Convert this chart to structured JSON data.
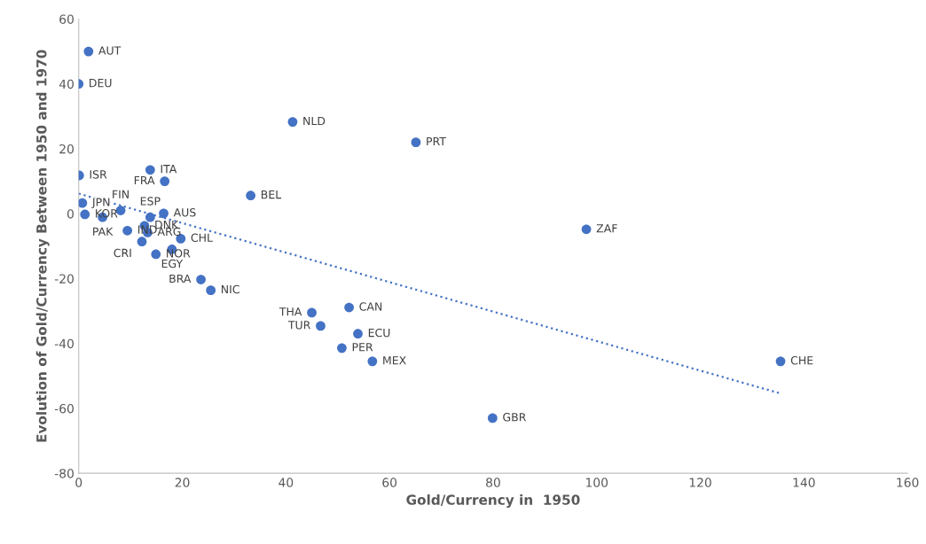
{
  "chart_data": {
    "type": "scatter",
    "xlabel": "Gold/Currency in  1950",
    "ylabel": "Evolution of Gold/Currency Between 1950 and 1970",
    "xlim": [
      0,
      160
    ],
    "xticks": [
      0,
      20,
      40,
      60,
      80,
      100,
      120,
      140,
      160
    ],
    "ylim": [
      -80,
      60
    ],
    "yticks": [
      -80,
      -60,
      -40,
      -20,
      0,
      20,
      40,
      60
    ],
    "grid": false,
    "series": [
      {
        "type": "scatter",
        "marker": "circle",
        "color": "#4472c4",
        "x": [
          1.9,
          0,
          41.3,
          65.1,
          0.1,
          13.8,
          16.6,
          33.2,
          0.7,
          1.2,
          4.6,
          8.1,
          13.8,
          16.4,
          9.4,
          12.7,
          13.3,
          12.2,
          19.7,
          18.0,
          14.9,
          98.0,
          23.6,
          25.5,
          45.0,
          52.2,
          46.7,
          53.9,
          50.8,
          56.7,
          79.9,
          135.5
        ],
        "values": [
          50.0,
          40.0,
          28.3,
          22.0,
          11.8,
          13.5,
          10.0,
          5.6,
          3.3,
          -0.2,
          -1.1,
          1.0,
          -1.1,
          0.1,
          -5.2,
          -3.7,
          -5.8,
          -8.6,
          -7.7,
          -11.0,
          -12.5,
          -4.8,
          -20.3,
          -23.6,
          -30.5,
          -28.9,
          -34.6,
          -37.0,
          -41.4,
          -45.5,
          -63.0,
          -45.5
        ]
      },
      {
        "type": "line",
        "marker": "none",
        "color": "#4472c4",
        "line_style": "dotted",
        "x": [
          0,
          135.5
        ],
        "values": [
          6.2,
          -55.4
        ]
      }
    ],
    "annotations": [
      {
        "text": "AUT",
        "x": 1.9,
        "y": 50.0
      },
      {
        "text": "DEU",
        "x": 0,
        "y": 40.0
      },
      {
        "text": "NLD",
        "x": 41.3,
        "y": 28.3
      },
      {
        "text": "PRT",
        "x": 65.1,
        "y": 22.0
      },
      {
        "text": "ISR",
        "x": 0.1,
        "y": 11.8
      },
      {
        "text": "ITA",
        "x": 13.8,
        "y": 13.5
      },
      {
        "text": "FRA",
        "x": 16.6,
        "y": 10.0
      },
      {
        "text": "BEL",
        "x": 33.2,
        "y": 5.6
      },
      {
        "text": "JPN",
        "x": 0.7,
        "y": 3.3
      },
      {
        "text": "KOR",
        "x": 1.2,
        "y": -0.2
      },
      {
        "text": "PAK",
        "x": 4.6,
        "y": -1.1
      },
      {
        "text": "FIN",
        "x": 8.1,
        "y": 1.0
      },
      {
        "text": "ESP",
        "x": 13.8,
        "y": -1.1
      },
      {
        "text": "AUS",
        "x": 16.4,
        "y": 0.1
      },
      {
        "text": "IND",
        "x": 9.4,
        "y": -5.2
      },
      {
        "text": "DNK",
        "x": 12.7,
        "y": -3.7
      },
      {
        "text": "ARG",
        "x": 13.3,
        "y": -5.8
      },
      {
        "text": "CRI",
        "x": 12.2,
        "y": -8.6
      },
      {
        "text": "CHL",
        "x": 19.7,
        "y": -7.7
      },
      {
        "text": "EGY",
        "x": 18.0,
        "y": -11.0
      },
      {
        "text": "NOR",
        "x": 14.9,
        "y": -12.5
      },
      {
        "text": "ZAF",
        "x": 98.0,
        "y": -4.8
      },
      {
        "text": "BRA",
        "x": 23.6,
        "y": -20.3
      },
      {
        "text": "NIC",
        "x": 25.5,
        "y": -23.6
      },
      {
        "text": "THA",
        "x": 45.0,
        "y": -30.5
      },
      {
        "text": "CAN",
        "x": 52.2,
        "y": -28.9
      },
      {
        "text": "TUR",
        "x": 46.7,
        "y": -34.6
      },
      {
        "text": "ECU",
        "x": 53.9,
        "y": -37.0
      },
      {
        "text": "PER",
        "x": 50.8,
        "y": -41.4
      },
      {
        "text": "MEX",
        "x": 56.7,
        "y": -45.5
      },
      {
        "text": "GBR",
        "x": 79.9,
        "y": -63.0
      },
      {
        "text": "CHE",
        "x": 135.5,
        "y": -45.5
      }
    ]
  }
}
